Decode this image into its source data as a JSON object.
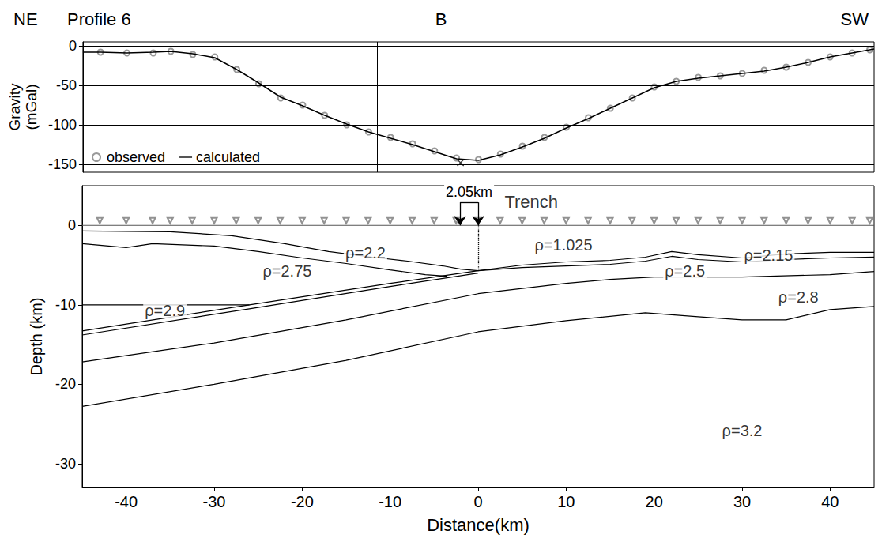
{
  "chart_data": [
    {
      "type": "line",
      "title": "Profile 6",
      "left_label": "NE",
      "right_label": "SW",
      "panel_label": "B",
      "y_label": "Gravity (mGal)",
      "xlim": [
        -45,
        45
      ],
      "ylim": [
        -160,
        5
      ],
      "yticks": [
        0,
        -50,
        -100,
        -150
      ],
      "grid": true,
      "tick_labels": "y",
      "legend": "lower left",
      "vertical_lines": [
        -11.5,
        17
      ],
      "minimum": {
        "x": -2.05,
        "y": -148
      },
      "series": [
        {
          "name": "observed",
          "type": "scatter",
          "marker": "open circle",
          "color": "#808080",
          "x": [
            -43,
            -40,
            -37,
            -35,
            -32.5,
            -30,
            -27.5,
            -25,
            -22.5,
            -20,
            -17.5,
            -15,
            -12.5,
            -10,
            -7.5,
            -5,
            -2.5,
            0,
            2.5,
            5,
            7.5,
            10,
            12.5,
            15,
            17.5,
            20,
            22.5,
            25,
            27.5,
            30,
            32.5,
            35,
            37.5,
            40,
            42.5,
            44.5
          ],
          "values": [
            -8,
            -9,
            -9,
            -7,
            -11,
            -14,
            -30,
            -48,
            -66,
            -75,
            -88,
            -100,
            -109,
            -116,
            -124,
            -133,
            -142,
            -144,
            -137,
            -127,
            -116,
            -103,
            -91,
            -79,
            -66,
            -52,
            -45,
            -40,
            -38,
            -35,
            -31,
            -27,
            -21,
            -14,
            -9,
            -5
          ]
        },
        {
          "name": "calculated",
          "type": "line",
          "line_style": "solid",
          "color": "#000000",
          "x": [
            -45,
            -43,
            -40,
            -37,
            -35,
            -32.5,
            -30,
            -27.5,
            -25,
            -22.5,
            -20,
            -17.5,
            -15,
            -12.5,
            -10,
            -7.5,
            -5,
            -2.5,
            0,
            2.5,
            5,
            7.5,
            10,
            12.5,
            15,
            17.5,
            20,
            22.5,
            25,
            27.5,
            30,
            32.5,
            35,
            37.5,
            40,
            42.5,
            45
          ],
          "values": [
            -8,
            -8,
            -9,
            -8,
            -7,
            -10,
            -15,
            -30,
            -47,
            -65,
            -76,
            -88,
            -99,
            -109,
            -117,
            -125,
            -134,
            -143,
            -145,
            -138,
            -128,
            -117,
            -104,
            -92,
            -79,
            -66,
            -53,
            -45,
            -41,
            -38,
            -35,
            -32,
            -27,
            -21,
            -14,
            -9,
            -4
          ]
        }
      ]
    },
    {
      "type": "cross_section",
      "x_label": "Distance(km)",
      "y_label": "Depth (km)",
      "xlim": [
        -45,
        45
      ],
      "ylim": [
        -33,
        5
      ],
      "xticks": [
        -40,
        -30,
        -20,
        -10,
        0,
        10,
        20,
        30,
        40
      ],
      "yticks": [
        0,
        -10,
        -20,
        -30
      ],
      "grid": false,
      "sea_level": 0,
      "stations": [
        -43,
        -40,
        -37,
        -35,
        -32.5,
        -30,
        -27.5,
        -25,
        -22.5,
        -20,
        -17.5,
        -15,
        -12.5,
        -10,
        -7.5,
        -5,
        -2.5,
        0,
        2.5,
        5,
        7.5,
        10,
        12.5,
        15,
        17.5,
        20,
        22.5,
        25,
        27.5,
        30,
        32.5,
        35,
        37.5,
        40,
        42.5,
        44.5
      ],
      "boundaries": [
        {
          "x": [
            -45,
            -35,
            -28,
            -22,
            -17,
            -12,
            -8,
            -4,
            -2,
            0,
            5,
            10,
            15,
            19,
            22,
            25,
            30,
            35,
            40,
            45
          ],
          "values": [
            -0.7,
            -0.8,
            -1.3,
            -2.3,
            -3.3,
            -4.0,
            -4.5,
            -5.1,
            -5.5,
            -5.7,
            -5.0,
            -4.6,
            -4.4,
            -4.0,
            -3.3,
            -3.7,
            -4.1,
            -3.6,
            -3.4,
            -3.4
          ]
        },
        {
          "x": [
            -45,
            -40,
            -37,
            -30,
            -25,
            -20,
            -15,
            -10,
            -6,
            -3.5
          ],
          "values": [
            -2.3,
            -2.8,
            -2.3,
            -2.6,
            -3.3,
            -4.1,
            -4.8,
            -5.6,
            -6.2,
            -6.4
          ]
        },
        {
          "x": [
            -45,
            -26
          ],
          "values": [
            -10,
            -10
          ]
        },
        {
          "x": [
            -45,
            -26,
            -10,
            0,
            5,
            10,
            15,
            19,
            22,
            25,
            30,
            35,
            40,
            45
          ],
          "values": [
            -13.3,
            -10.0,
            -7.3,
            -5.7,
            -5.3,
            -5.1,
            -4.9,
            -4.5,
            -3.9,
            -4.3,
            -4.6,
            -4.3,
            -4.1,
            -4.0
          ]
        },
        {
          "x": [
            -45,
            -26,
            -10,
            0
          ],
          "values": [
            -13.8,
            -10.5,
            -7.7,
            -6.0
          ]
        },
        {
          "x": [
            -45,
            -30,
            -15,
            0,
            10,
            15,
            20,
            30,
            40,
            45
          ],
          "values": [
            -17.2,
            -14.8,
            -11.9,
            -8.6,
            -7.3,
            -6.8,
            -6.5,
            -6.5,
            -6.2,
            -5.8
          ]
        },
        {
          "x": [
            -45,
            -30,
            -15,
            0,
            10,
            19,
            25,
            30,
            35,
            40,
            45
          ],
          "values": [
            -22.8,
            -20.0,
            -17.0,
            -13.4,
            -12.0,
            -11.0,
            -11.5,
            -11.9,
            -11.9,
            -10.6,
            -10.2
          ]
        }
      ],
      "densities": [
        {
          "label": "ρ=1.025",
          "x": 9.7,
          "y": -2.5
        },
        {
          "label": "ρ=2.2",
          "x": -12.8,
          "y": -3.5
        },
        {
          "label": "ρ=2.75",
          "x": -21.7,
          "y": -5.7
        },
        {
          "label": "ρ=2.15",
          "x": 33,
          "y": -3.8
        },
        {
          "label": "ρ=2.5",
          "x": 23.5,
          "y": -5.7
        },
        {
          "label": "ρ=2.9",
          "x": -35.6,
          "y": -10.7
        },
        {
          "label": "ρ=2.8",
          "x": 36.4,
          "y": -9.0
        },
        {
          "label": "ρ=3.2",
          "x": 30,
          "y": -25.8
        }
      ],
      "trench": {
        "label": "Trench",
        "x": 3,
        "y": 3,
        "offset_label": "2.05km",
        "from": -2.05,
        "to": 0,
        "bracket_y": 2.9,
        "depth": -5.7
      }
    }
  ]
}
